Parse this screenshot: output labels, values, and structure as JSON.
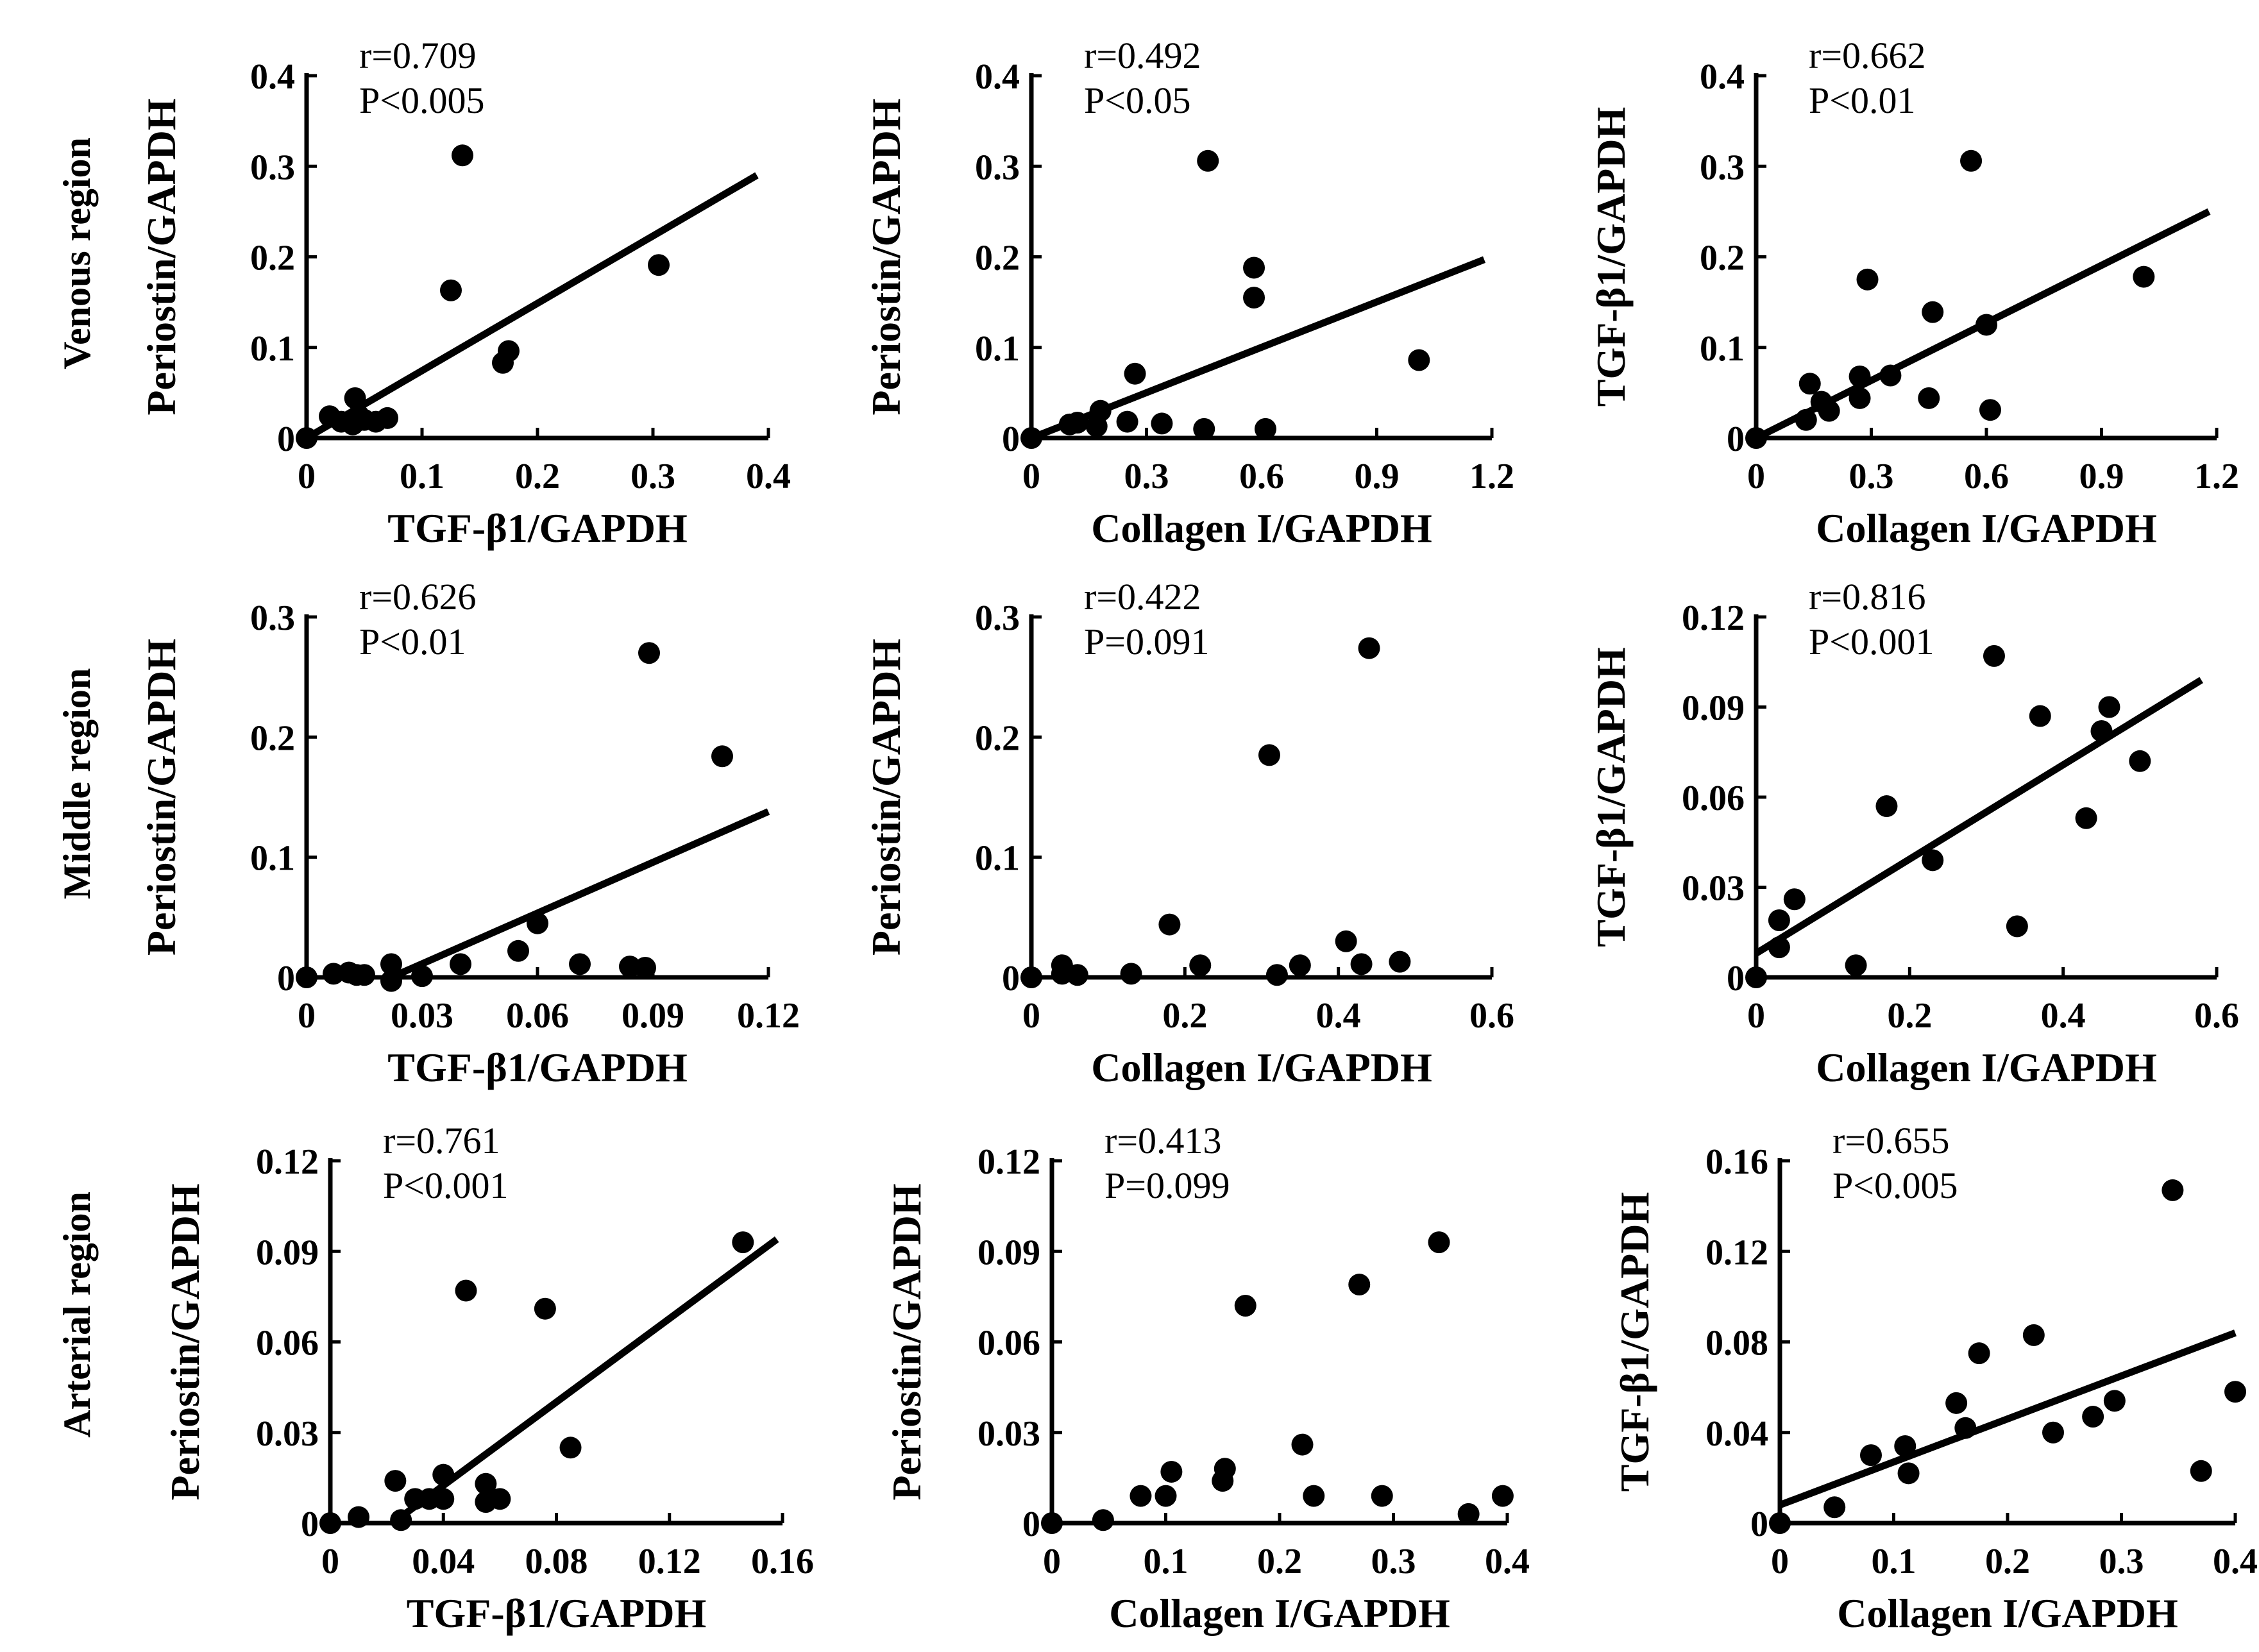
{
  "row_labels": [
    "Venous region",
    "Middle region",
    "Arterial region"
  ],
  "colors": {
    "ink": "#000000",
    "background": "#ffffff"
  },
  "chart_data": [
    {
      "type": "scatter",
      "region": "Venous region",
      "xlabel": "TGF-β1/GAPDH",
      "ylabel": "Periostin/GAPDH",
      "r": "r=0.709",
      "p": "P<0.005",
      "xlim": [
        0,
        0.4
      ],
      "ylim": [
        0,
        0.4
      ],
      "xticks": [
        0,
        0.1,
        0.2,
        0.3,
        0.4
      ],
      "xtick_labels": [
        "0",
        "0.1",
        "0.2",
        "0.3",
        "0.4"
      ],
      "yticks": [
        0,
        0.1,
        0.2,
        0.3,
        0.4
      ],
      "ytick_labels": [
        "0",
        "0.1",
        "0.2",
        "0.3",
        "0.4"
      ],
      "points": [
        [
          0.0,
          0.0
        ],
        [
          0.02,
          0.024
        ],
        [
          0.03,
          0.018
        ],
        [
          0.04,
          0.015
        ],
        [
          0.042,
          0.044
        ],
        [
          0.045,
          0.025
        ],
        [
          0.05,
          0.02
        ],
        [
          0.06,
          0.018
        ],
        [
          0.07,
          0.022
        ],
        [
          0.125,
          0.163
        ],
        [
          0.135,
          0.312
        ],
        [
          0.17,
          0.083
        ],
        [
          0.175,
          0.096
        ],
        [
          0.305,
          0.191
        ]
      ],
      "fit": [
        [
          0.0,
          0.0
        ],
        [
          0.39,
          0.29
        ]
      ]
    },
    {
      "type": "scatter",
      "region": "Venous region",
      "xlabel": "Collagen I/GAPDH",
      "ylabel": "Periostin/GAPDH",
      "r": "r=0.492",
      "p": "P<0.05",
      "xlim": [
        0,
        1.2
      ],
      "ylim": [
        0,
        0.4
      ],
      "xticks": [
        0,
        0.3,
        0.6,
        0.9,
        1.2
      ],
      "xtick_labels": [
        "0",
        "0.3",
        "0.6",
        "0.9",
        "1.2"
      ],
      "yticks": [
        0,
        0.1,
        0.2,
        0.3,
        0.4
      ],
      "ytick_labels": [
        "0",
        "0.1",
        "0.2",
        "0.3",
        "0.4"
      ],
      "points": [
        [
          0.0,
          0.0
        ],
        [
          0.1,
          0.015
        ],
        [
          0.12,
          0.017
        ],
        [
          0.17,
          0.013
        ],
        [
          0.18,
          0.03
        ],
        [
          0.25,
          0.018
        ],
        [
          0.27,
          0.071
        ],
        [
          0.34,
          0.016
        ],
        [
          0.45,
          0.01
        ],
        [
          0.46,
          0.306
        ],
        [
          0.58,
          0.188
        ],
        [
          0.58,
          0.155
        ],
        [
          0.61,
          0.01
        ],
        [
          1.01,
          0.086
        ]
      ],
      "fit": [
        [
          0.0,
          0.0
        ],
        [
          1.18,
          0.197
        ]
      ]
    },
    {
      "type": "scatter",
      "region": "Venous region",
      "xlabel": "Collagen I/GAPDH",
      "ylabel": "TGF-β1/GAPDH",
      "r": "r=0.662",
      "p": "P<0.01",
      "xlim": [
        0,
        1.2
      ],
      "ylim": [
        0,
        0.4
      ],
      "xticks": [
        0,
        0.3,
        0.6,
        0.9,
        1.2
      ],
      "xtick_labels": [
        "0",
        "0.3",
        "0.6",
        "0.9",
        "1.2"
      ],
      "yticks": [
        0,
        0.1,
        0.2,
        0.3,
        0.4
      ],
      "ytick_labels": [
        "0",
        "0.1",
        "0.2",
        "0.3",
        "0.4"
      ],
      "points": [
        [
          0.0,
          0.0
        ],
        [
          0.13,
          0.02
        ],
        [
          0.14,
          0.06
        ],
        [
          0.17,
          0.04
        ],
        [
          0.19,
          0.03
        ],
        [
          0.27,
          0.068
        ],
        [
          0.27,
          0.044
        ],
        [
          0.29,
          0.175
        ],
        [
          0.35,
          0.069
        ],
        [
          0.45,
          0.044
        ],
        [
          0.46,
          0.139
        ],
        [
          0.56,
          0.306
        ],
        [
          0.6,
          0.125
        ],
        [
          0.61,
          0.031
        ],
        [
          1.01,
          0.178
        ]
      ],
      "fit": [
        [
          0.0,
          0.0
        ],
        [
          1.18,
          0.25
        ]
      ]
    },
    {
      "type": "scatter",
      "region": "Middle region",
      "xlabel": "TGF-β1/GAPDH",
      "ylabel": "Periostin/GAPDH",
      "r": "r=0.626",
      "p": "P<0.01",
      "xlim": [
        0,
        0.12
      ],
      "ylim": [
        0,
        0.3
      ],
      "xticks": [
        0,
        0.03,
        0.06,
        0.09,
        0.12
      ],
      "xtick_labels": [
        "0",
        "0.03",
        "0.06",
        "0.09",
        "0.12"
      ],
      "yticks": [
        0,
        0.1,
        0.2,
        0.3
      ],
      "ytick_labels": [
        "0",
        "0.1",
        "0.2",
        "0.3"
      ],
      "points": [
        [
          0.0,
          0.0
        ],
        [
          0.007,
          0.003
        ],
        [
          0.011,
          0.004
        ],
        [
          0.013,
          0.002
        ],
        [
          0.015,
          0.002
        ],
        [
          0.022,
          0.011
        ],
        [
          0.022,
          -0.003
        ],
        [
          0.03,
          0.001
        ],
        [
          0.04,
          0.011
        ],
        [
          0.055,
          0.022
        ],
        [
          0.06,
          0.045
        ],
        [
          0.071,
          0.011
        ],
        [
          0.084,
          0.009
        ],
        [
          0.088,
          0.008
        ],
        [
          0.089,
          0.27
        ],
        [
          0.108,
          0.184
        ]
      ],
      "fit": [
        [
          0.022,
          0.0
        ],
        [
          0.12,
          0.138
        ]
      ]
    },
    {
      "type": "scatter",
      "region": "Middle region",
      "xlabel": "Collagen I/GAPDH",
      "ylabel": "Periostin/GAPDH",
      "r": "r=0.422",
      "p": "P=0.091",
      "xlim": [
        0,
        0.6
      ],
      "ylim": [
        0,
        0.3
      ],
      "xticks": [
        0,
        0.2,
        0.4,
        0.6
      ],
      "xtick_labels": [
        "0",
        "0.2",
        "0.4",
        "0.6"
      ],
      "yticks": [
        0,
        0.1,
        0.2,
        0.3
      ],
      "ytick_labels": [
        "0",
        "0.1",
        "0.2",
        "0.3"
      ],
      "points": [
        [
          0.0,
          0.0
        ],
        [
          0.04,
          0.01
        ],
        [
          0.04,
          0.003
        ],
        [
          0.06,
          0.002
        ],
        [
          0.13,
          0.003
        ],
        [
          0.18,
          0.044
        ],
        [
          0.22,
          0.01
        ],
        [
          0.31,
          0.185
        ],
        [
          0.32,
          0.002
        ],
        [
          0.35,
          0.01
        ],
        [
          0.41,
          0.03
        ],
        [
          0.43,
          0.011
        ],
        [
          0.44,
          0.274
        ],
        [
          0.48,
          0.013
        ]
      ],
      "fit": []
    },
    {
      "type": "scatter",
      "region": "Middle region",
      "xlabel": "Collagen I/GAPDH",
      "ylabel": "TGF-β1/GAPDH",
      "r": "r=0.816",
      "p": "P<0.001",
      "xlim": [
        0,
        0.6
      ],
      "ylim": [
        0,
        0.12
      ],
      "xticks": [
        0,
        0.2,
        0.4,
        0.6
      ],
      "xtick_labels": [
        "0",
        "0.2",
        "0.4",
        "0.6"
      ],
      "yticks": [
        0,
        0.03,
        0.06,
        0.09,
        0.12
      ],
      "ytick_labels": [
        "0",
        "0.03",
        "0.06",
        "0.09",
        "0.12"
      ],
      "points": [
        [
          0.0,
          0.0
        ],
        [
          0.03,
          0.01
        ],
        [
          0.03,
          0.019
        ],
        [
          0.05,
          0.026
        ],
        [
          0.13,
          0.004
        ],
        [
          0.17,
          0.057
        ],
        [
          0.23,
          0.039
        ],
        [
          0.31,
          0.107
        ],
        [
          0.34,
          0.017
        ],
        [
          0.37,
          0.087
        ],
        [
          0.43,
          0.053
        ],
        [
          0.45,
          0.082
        ],
        [
          0.46,
          0.09
        ],
        [
          0.5,
          0.072
        ]
      ],
      "fit": [
        [
          0.0,
          0.008
        ],
        [
          0.58,
          0.099
        ]
      ]
    },
    {
      "type": "scatter",
      "region": "Arterial region",
      "xlabel": "TGF-β1/GAPDH",
      "ylabel": "Periostin/GAPDH",
      "r": "r=0.761",
      "p": "P<0.001",
      "xlim": [
        0,
        0.16
      ],
      "ylim": [
        0,
        0.12
      ],
      "xticks": [
        0,
        0.04,
        0.08,
        0.12,
        0.16
      ],
      "xtick_labels": [
        "0",
        "0.04",
        "0.08",
        "0.12",
        "0.16"
      ],
      "yticks": [
        0,
        0.03,
        0.06,
        0.09,
        0.12
      ],
      "ytick_labels": [
        "0",
        "0.03",
        "0.06",
        "0.09",
        "0.12"
      ],
      "points": [
        [
          0.0,
          0.0
        ],
        [
          0.01,
          0.002
        ],
        [
          0.023,
          0.014
        ],
        [
          0.025,
          0.001
        ],
        [
          0.03,
          0.008
        ],
        [
          0.035,
          0.008
        ],
        [
          0.04,
          0.016
        ],
        [
          0.04,
          0.008
        ],
        [
          0.048,
          0.077
        ],
        [
          0.055,
          0.013
        ],
        [
          0.055,
          0.007
        ],
        [
          0.06,
          0.008
        ],
        [
          0.076,
          0.071
        ],
        [
          0.085,
          0.025
        ],
        [
          0.146,
          0.093
        ]
      ],
      "fit": [
        [
          0.022,
          0.0
        ],
        [
          0.158,
          0.094
        ]
      ]
    },
    {
      "type": "scatter",
      "region": "Arterial region",
      "xlabel": "Collagen I/GAPDH",
      "ylabel": "Periostin/GAPDH",
      "r": "r=0.413",
      "p": "P=0.099",
      "xlim": [
        0,
        0.4
      ],
      "ylim": [
        0,
        0.12
      ],
      "xticks": [
        0,
        0.1,
        0.2,
        0.3,
        0.4
      ],
      "xtick_labels": [
        "0",
        "0.1",
        "0.2",
        "0.3",
        "0.4"
      ],
      "yticks": [
        0,
        0.03,
        0.06,
        0.09,
        0.12
      ],
      "ytick_labels": [
        "0",
        "0.03",
        "0.06",
        "0.09",
        "0.12"
      ],
      "points": [
        [
          0.0,
          0.0
        ],
        [
          0.045,
          0.001
        ],
        [
          0.078,
          0.009
        ],
        [
          0.1,
          0.009
        ],
        [
          0.105,
          0.017
        ],
        [
          0.15,
          0.014
        ],
        [
          0.152,
          0.018
        ],
        [
          0.17,
          0.072
        ],
        [
          0.22,
          0.026
        ],
        [
          0.23,
          0.009
        ],
        [
          0.27,
          0.079
        ],
        [
          0.29,
          0.009
        ],
        [
          0.34,
          0.093
        ],
        [
          0.366,
          0.003
        ],
        [
          0.396,
          0.009
        ]
      ],
      "fit": []
    },
    {
      "type": "scatter",
      "region": "Arterial region",
      "xlabel": "Collagen I/GAPDH",
      "ylabel": "TGF-β1/GAPDH",
      "r": "r=0.655",
      "p": "P<0.005",
      "xlim": [
        0,
        0.4
      ],
      "ylim": [
        0,
        0.16
      ],
      "xticks": [
        0,
        0.1,
        0.2,
        0.3,
        0.4
      ],
      "xtick_labels": [
        "0",
        "0.1",
        "0.2",
        "0.3",
        "0.4"
      ],
      "yticks": [
        0,
        0.04,
        0.08,
        0.12,
        0.16
      ],
      "ytick_labels": [
        "0",
        "0.04",
        "0.08",
        "0.12",
        "0.16"
      ],
      "points": [
        [
          0.0,
          0.0
        ],
        [
          0.048,
          0.007
        ],
        [
          0.08,
          0.03
        ],
        [
          0.11,
          0.034
        ],
        [
          0.113,
          0.022
        ],
        [
          0.155,
          0.053
        ],
        [
          0.163,
          0.042
        ],
        [
          0.175,
          0.075
        ],
        [
          0.223,
          0.083
        ],
        [
          0.24,
          0.04
        ],
        [
          0.275,
          0.047
        ],
        [
          0.294,
          0.054
        ],
        [
          0.345,
          0.147
        ],
        [
          0.37,
          0.023
        ],
        [
          0.4,
          0.058
        ]
      ],
      "fit": [
        [
          0.0,
          0.008
        ],
        [
          0.4,
          0.084
        ]
      ]
    }
  ]
}
